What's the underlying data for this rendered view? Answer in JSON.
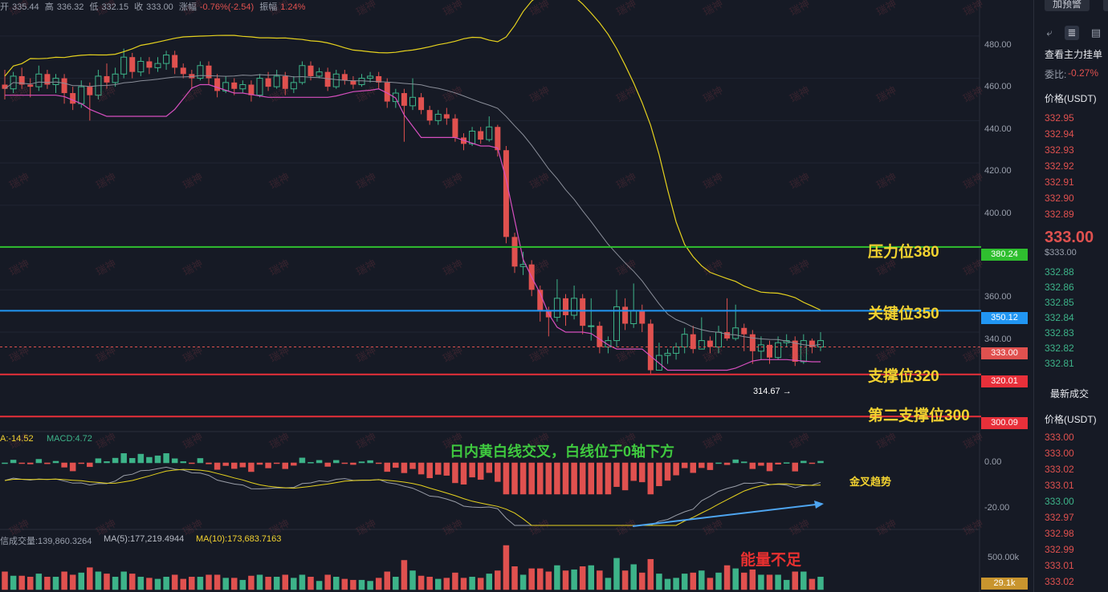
{
  "header": {
    "open_label": "开",
    "open": "335.44",
    "high_label": "高",
    "high": "336.32",
    "low_label": "低",
    "low": "332.15",
    "close_label": "收",
    "close": "333.00",
    "change_label": "涨幅",
    "change": "-0.76%(-2.54)",
    "amp_label": "振幅",
    "amp": "1.24%"
  },
  "annotations": {
    "resistance": "压力位380",
    "key": "关键位350",
    "support": "支撑位320",
    "support2": "第二支撑位300",
    "macd_note": "日内黄白线交叉，白线位于0轴下方",
    "golden": "金叉趋势",
    "volume_note": "能量不足",
    "low_marker": "314.67 →"
  },
  "indicator_labels": {
    "macd_dea": "A:-14.52",
    "macd": "MACD:4.72",
    "vol_prefix": "信成交量:139,860.3264",
    "vol_ma5": "MA(5):177,219.4944",
    "vol_ma10": "MA(10):173,683.7163"
  },
  "tags": {
    "t380": "380.24",
    "t350": "350.12",
    "tcur": "333.00",
    "t320": "320.01",
    "t300": "300.09",
    "tvol": "29.1k"
  },
  "watermark": "瑞神",
  "side_panel": {
    "alert_button": "加预警",
    "title": "查看主力挂单",
    "ratio_label": "委比:",
    "ratio_value": "-0.27%",
    "price_header": "价格(USDT)",
    "asks": [
      "332.95",
      "332.94",
      "332.93",
      "332.92",
      "332.91",
      "332.90",
      "332.89"
    ],
    "last_price": "333.00",
    "last_price_usd": "$333.00",
    "bids": [
      "332.88",
      "332.86",
      "332.85",
      "332.84",
      "332.83",
      "332.82",
      "332.81"
    ],
    "trades_title": "最新成交",
    "trades_header": "价格(USDT)",
    "trades": [
      {
        "p": "333.00",
        "c": "red"
      },
      {
        "p": "333.00",
        "c": "red"
      },
      {
        "p": "333.02",
        "c": "red"
      },
      {
        "p": "333.01",
        "c": "red"
      },
      {
        "p": "333.00",
        "c": "green"
      },
      {
        "p": "332.97",
        "c": "red"
      },
      {
        "p": "332.98",
        "c": "red"
      },
      {
        "p": "332.99",
        "c": "red"
      },
      {
        "p": "333.01",
        "c": "red"
      },
      {
        "p": "333.02",
        "c": "red"
      }
    ]
  },
  "chart_data": [
    {
      "type": "candlestick",
      "y_ticks": [
        "480.00",
        "460.00",
        "440.00",
        "420.00",
        "400.00",
        "360.00",
        "340.00"
      ],
      "ylim": [
        293,
        497
      ],
      "levels": [
        {
          "label": "压力位380",
          "value": 380.24,
          "color": "#2fbf2f"
        },
        {
          "label": "关键位350",
          "value": 350.12,
          "color": "#2196f3"
        },
        {
          "label": "支撑位320",
          "value": 320.01,
          "color": "#e8303a"
        },
        {
          "label": "第二支撑位300",
          "value": 300.09,
          "color": "#e8303a"
        }
      ],
      "current_price": 333.0,
      "candles": [
        [
          457,
          455,
          464,
          450
        ],
        [
          455,
          461,
          463,
          453
        ],
        [
          461,
          457,
          465,
          455
        ],
        [
          457,
          456,
          460,
          451
        ],
        [
          456,
          462,
          466,
          454
        ],
        [
          462,
          457,
          464,
          455
        ],
        [
          457,
          460,
          462,
          453
        ],
        [
          460,
          453,
          462,
          448
        ],
        [
          453,
          448,
          456,
          445
        ],
        [
          448,
          456,
          459,
          446
        ],
        [
          456,
          452,
          458,
          440
        ],
        [
          452,
          461,
          464,
          450
        ],
        [
          461,
          458,
          467,
          455
        ],
        [
          458,
          462,
          465,
          456
        ],
        [
          462,
          470,
          474,
          460
        ],
        [
          470,
          463,
          472,
          460
        ],
        [
          463,
          468,
          470,
          461
        ],
        [
          468,
          465,
          470,
          462
        ],
        [
          465,
          467,
          470,
          463
        ],
        [
          467,
          471,
          473,
          464
        ],
        [
          471,
          465,
          473,
          462
        ],
        [
          465,
          462,
          467,
          460
        ],
        [
          462,
          460,
          464,
          455
        ],
        [
          460,
          466,
          468,
          459
        ],
        [
          466,
          460,
          468,
          457
        ],
        [
          460,
          454,
          462,
          451
        ],
        [
          454,
          458,
          461,
          453
        ],
        [
          458,
          455,
          460,
          452
        ],
        [
          455,
          457,
          459,
          453
        ],
        [
          457,
          452,
          459,
          449
        ],
        [
          452,
          460,
          462,
          451
        ],
        [
          460,
          456,
          463,
          454
        ],
        [
          456,
          461,
          464,
          455
        ],
        [
          461,
          455,
          463,
          452
        ],
        [
          455,
          458,
          461,
          453
        ],
        [
          458,
          466,
          468,
          457
        ],
        [
          466,
          461,
          468,
          459
        ],
        [
          461,
          463,
          465,
          460
        ],
        [
          463,
          456,
          465,
          454
        ],
        [
          456,
          462,
          464,
          455
        ],
        [
          462,
          459,
          464,
          457
        ],
        [
          459,
          457,
          461,
          455
        ],
        [
          457,
          460,
          462,
          456
        ],
        [
          460,
          461,
          463,
          458
        ],
        [
          461,
          458,
          463,
          455
        ],
        [
          458,
          449,
          460,
          446
        ],
        [
          449,
          453,
          455,
          446
        ],
        [
          453,
          447,
          455,
          430
        ],
        [
          447,
          451,
          460,
          445
        ],
        [
          451,
          445,
          453,
          443
        ],
        [
          445,
          440,
          447,
          438
        ],
        [
          440,
          443,
          445,
          438
        ],
        [
          443,
          441,
          446,
          438
        ],
        [
          441,
          432,
          443,
          430
        ],
        [
          432,
          429,
          434,
          426
        ],
        [
          429,
          435,
          437,
          428
        ],
        [
          435,
          431,
          437,
          429
        ],
        [
          431,
          437,
          442,
          430
        ],
        [
          437,
          426,
          438,
          423
        ],
        [
          426,
          385,
          428,
          382
        ],
        [
          385,
          371,
          387,
          368
        ],
        [
          371,
          372,
          378,
          367
        ],
        [
          372,
          360,
          374,
          357
        ],
        [
          360,
          350,
          362,
          345
        ],
        [
          350,
          347,
          352,
          338
        ],
        [
          347,
          356,
          365,
          345
        ],
        [
          356,
          348,
          358,
          343
        ],
        [
          348,
          356,
          362,
          346
        ],
        [
          356,
          343,
          358,
          339
        ],
        [
          343,
          343,
          356,
          336
        ],
        [
          343,
          333,
          345,
          330
        ],
        [
          333,
          336,
          338,
          330
        ],
        [
          336,
          352,
          360,
          333
        ],
        [
          352,
          344,
          356,
          341
        ],
        [
          344,
          350,
          363,
          342
        ],
        [
          350,
          344,
          353,
          340
        ],
        [
          344,
          322,
          346,
          320
        ],
        [
          322,
          329,
          335,
          323
        ],
        [
          329,
          330,
          332,
          325
        ],
        [
          330,
          333,
          335,
          327
        ],
        [
          333,
          339,
          342,
          330
        ],
        [
          339,
          332,
          343,
          330
        ],
        [
          332,
          336,
          347,
          332
        ],
        [
          336,
          333,
          338,
          330
        ],
        [
          333,
          340,
          343,
          330
        ],
        [
          340,
          337,
          356,
          336
        ],
        [
          337,
          342,
          353,
          336
        ],
        [
          342,
          339,
          344,
          331
        ],
        [
          339,
          331,
          341,
          325
        ],
        [
          331,
          334,
          338,
          327
        ],
        [
          334,
          328,
          336,
          325
        ],
        [
          328,
          335,
          338,
          327
        ],
        [
          335,
          336,
          339,
          333
        ],
        [
          336,
          326,
          338,
          324
        ],
        [
          326,
          336,
          339,
          325
        ],
        [
          336,
          333,
          337,
          330
        ],
        [
          333,
          336,
          340,
          331
        ]
      ]
    },
    {
      "type": "macd",
      "y_ticks": [
        "0.00",
        "-20.00"
      ],
      "values": {
        "dea": -14.52,
        "macd": 4.72
      }
    },
    {
      "type": "volume",
      "y_ticks": [
        "500.00k"
      ],
      "current": "29.1k"
    }
  ]
}
